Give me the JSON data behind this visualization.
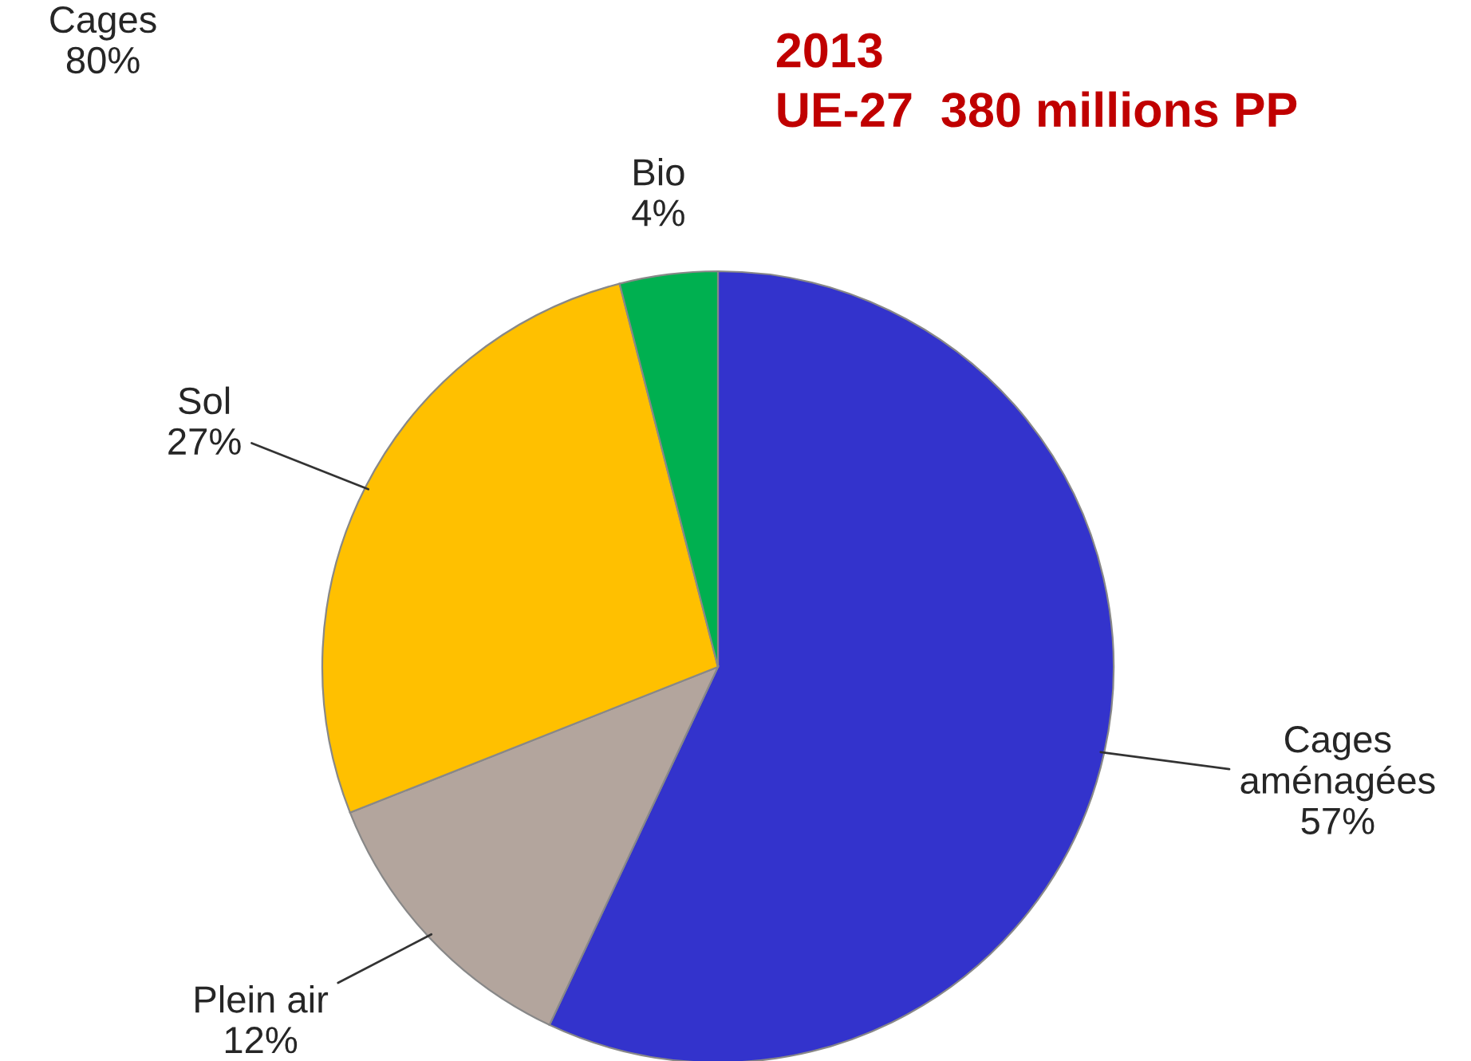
{
  "chart_data": {
    "type": "pie",
    "title": "2013\nUE-27  380 millions PP",
    "categories": [
      "Cages\naménagées",
      "Plein air",
      "Sol",
      "Bio"
    ],
    "values": [
      57,
      12,
      27,
      4
    ],
    "colors": [
      "#3333cc",
      "#b3a59d",
      "#ffc000",
      "#00b050"
    ],
    "value_labels": [
      "57%",
      "12%",
      "27%",
      "4%"
    ],
    "annotations": [
      "Cages\n80%"
    ],
    "legend": false
  }
}
